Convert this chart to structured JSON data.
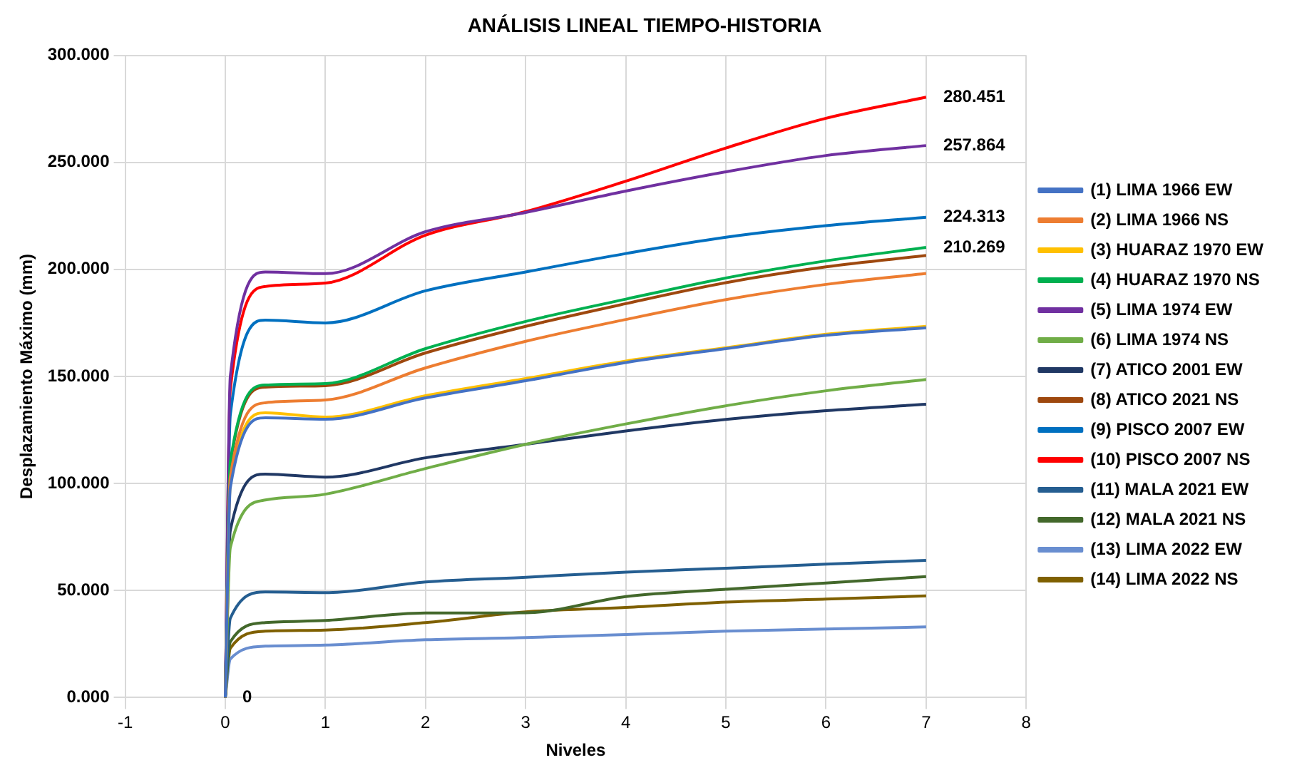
{
  "chart_data": {
    "type": "line",
    "title": "ANÁLISIS LINEAL TIEMPO-HISTORIA",
    "xlabel": "Niveles",
    "ylabel": "Desplazamiento Máximo (mm)",
    "x": [
      0,
      0.05,
      0.4,
      1,
      2,
      3,
      4,
      5,
      6,
      7
    ],
    "xlim": [
      -1,
      8
    ],
    "xticks": [
      -1,
      0,
      1,
      2,
      3,
      4,
      5,
      6,
      7,
      8
    ],
    "ylim": [
      0,
      300
    ],
    "yticks": [
      {
        "value": 0,
        "label": "0.000"
      },
      {
        "value": 50,
        "label": "50.000"
      },
      {
        "value": 100,
        "label": "100.000"
      },
      {
        "value": 150,
        "label": "150.000"
      },
      {
        "value": 200,
        "label": "200.000"
      },
      {
        "value": 250,
        "label": "250.000"
      },
      {
        "value": 300,
        "label": "300.000"
      }
    ],
    "grid": true,
    "legend": "right",
    "marker": "none",
    "series": [
      {
        "name": "(1) LIMA 1966 EW",
        "color": "#4472c4",
        "values": [
          0,
          98,
          130.7,
          130,
          140,
          148,
          156.5,
          163,
          169.2,
          172.7
        ]
      },
      {
        "name": "(2) LIMA 1966 NS",
        "color": "#ed7d31",
        "values": [
          0,
          103,
          137.7,
          139,
          154,
          166.4,
          176.6,
          185.9,
          193,
          198.1
        ]
      },
      {
        "name": "(3) HUARAZ 1970 EW",
        "color": "#ffc000",
        "values": [
          0,
          100,
          133,
          131,
          141,
          149,
          157.2,
          163.4,
          169.7,
          173.4
        ]
      },
      {
        "name": "(4) HUARAZ 1970 NS",
        "color": "#00b050",
        "values": [
          0,
          110,
          146,
          146.7,
          163,
          175.7,
          186.1,
          196,
          204,
          210.269
        ],
        "value_labels": [
          null,
          null,
          null,
          null,
          null,
          null,
          null,
          null,
          null,
          "210.269"
        ]
      },
      {
        "name": "(5) LIMA 1974 EW",
        "color": "#7030a0",
        "values": [
          0,
          150,
          198.8,
          198,
          217.6,
          226.6,
          236.6,
          245.6,
          253.2,
          257.864
        ],
        "value_labels": [
          null,
          null,
          null,
          null,
          null,
          null,
          null,
          null,
          null,
          "257.864"
        ]
      },
      {
        "name": "(6) LIMA 1974 NS",
        "color": "#70ad47",
        "values": [
          0,
          70,
          92.3,
          95,
          107,
          118.3,
          127.8,
          136.3,
          143.3,
          148.6
        ]
      },
      {
        "name": "(7) ATICO 2001 EW",
        "color": "#203864",
        "values": [
          0,
          78,
          104.4,
          103,
          112,
          118.3,
          124.5,
          129.9,
          134,
          137
        ]
      },
      {
        "name": "(8) ATICO 2021 NS",
        "color": "#9e480e",
        "values": [
          0,
          109,
          145,
          145.7,
          161,
          173.4,
          184,
          193.8,
          201.2,
          206.5
        ]
      },
      {
        "name": "(9) PISCO 2007 EW",
        "color": "#0070c0",
        "values": [
          0,
          132,
          176.3,
          175,
          190,
          198.8,
          207.4,
          215,
          220.4,
          224.313
        ],
        "value_labels": [
          null,
          null,
          null,
          null,
          null,
          null,
          null,
          null,
          null,
          "224.313"
        ]
      },
      {
        "name": "(10) PISCO 2007 NS",
        "color": "#ff0000",
        "values": [
          0,
          144,
          192,
          193.6,
          216,
          227,
          241.2,
          256.7,
          270.6,
          280.451
        ],
        "value_labels": [
          "0",
          null,
          null,
          null,
          null,
          null,
          null,
          null,
          null,
          "280.451"
        ]
      },
      {
        "name": "(11) MALA 2021 EW",
        "color": "#255e91",
        "values": [
          0,
          37,
          49.3,
          49,
          54,
          56.2,
          58.6,
          60.4,
          62.3,
          64.1
        ]
      },
      {
        "name": "(12) MALA 2021 NS",
        "color": "#43682b",
        "values": [
          0,
          26,
          35,
          36,
          39.5,
          39.6,
          47.2,
          50.6,
          53.5,
          56.5
        ]
      },
      {
        "name": "(13) LIMA 2022 EW",
        "color": "#698ed0",
        "values": [
          0,
          18,
          24,
          24.5,
          27,
          28,
          29.4,
          31,
          32,
          33
        ]
      },
      {
        "name": "(14) LIMA 2022 NS",
        "color": "#7f6000",
        "values": [
          0,
          23,
          31,
          31.5,
          35,
          40,
          42.1,
          44.6,
          46,
          47.5
        ]
      }
    ]
  }
}
